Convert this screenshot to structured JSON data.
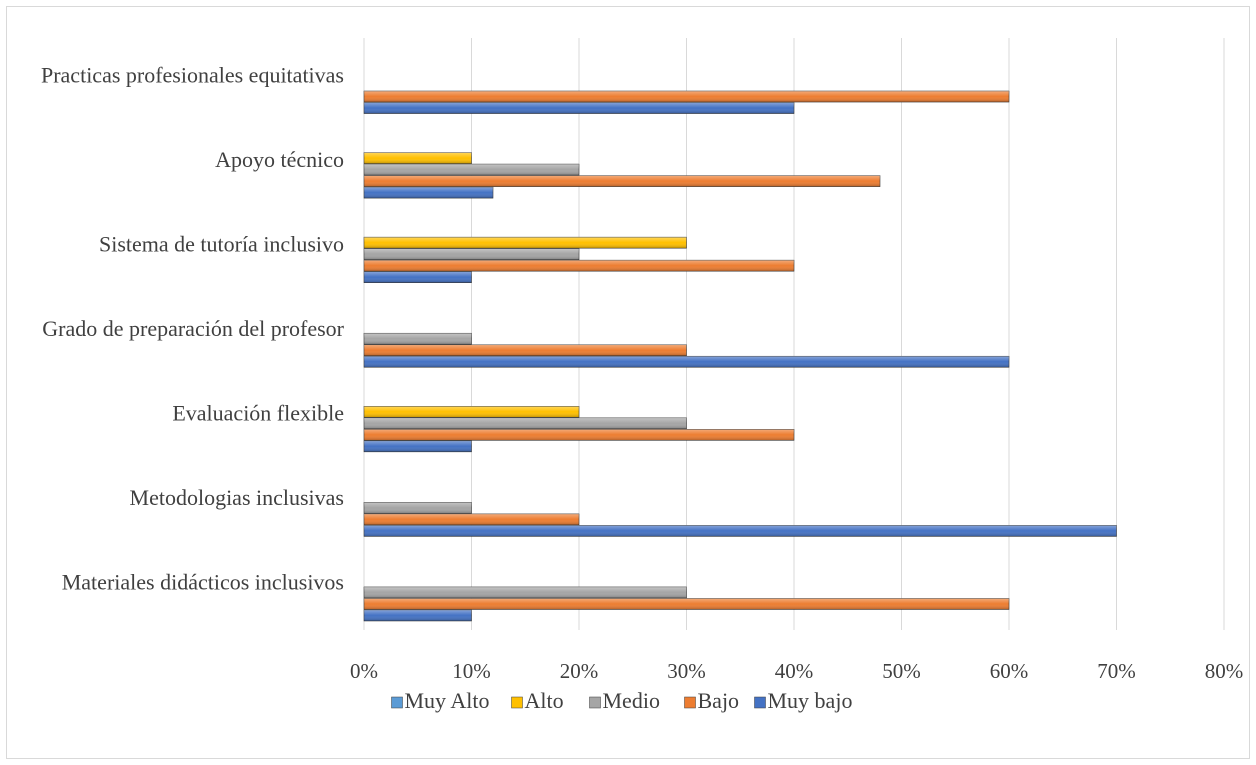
{
  "chart_data": {
    "type": "bar",
    "orientation": "horizontal",
    "categories": [
      "Practicas profesionales equitativas",
      "Apoyo técnico",
      "Sistema de tutoría inclusivo",
      "Grado de preparación del profesor",
      "Evaluación flexible",
      "Metodologias inclusivas",
      "Materiales didácticos inclusivos"
    ],
    "series": [
      {
        "name": "Muy Alto",
        "color": "#5b9bd5",
        "values": [
          0,
          0,
          0,
          0,
          0,
          0,
          0
        ]
      },
      {
        "name": "Alto",
        "color": "#ffc000",
        "values": [
          0,
          10,
          30,
          0,
          20,
          0,
          0
        ]
      },
      {
        "name": "Medio",
        "color": "#a5a5a5",
        "values": [
          0,
          20,
          20,
          10,
          30,
          10,
          30
        ]
      },
      {
        "name": "Bajo",
        "color": "#ed7d31",
        "values": [
          60,
          48,
          40,
          30,
          40,
          20,
          60
        ]
      },
      {
        "name": "Muy bajo",
        "color": "#4472c4",
        "values": [
          40,
          12,
          10,
          60,
          10,
          70,
          10
        ]
      }
    ],
    "xlim": [
      0,
      80
    ],
    "xticks": [
      "0%",
      "10%",
      "20%",
      "30%",
      "40%",
      "50%",
      "60%",
      "70%",
      "80%"
    ],
    "grid": "vertical",
    "legend_position": "bottom"
  }
}
